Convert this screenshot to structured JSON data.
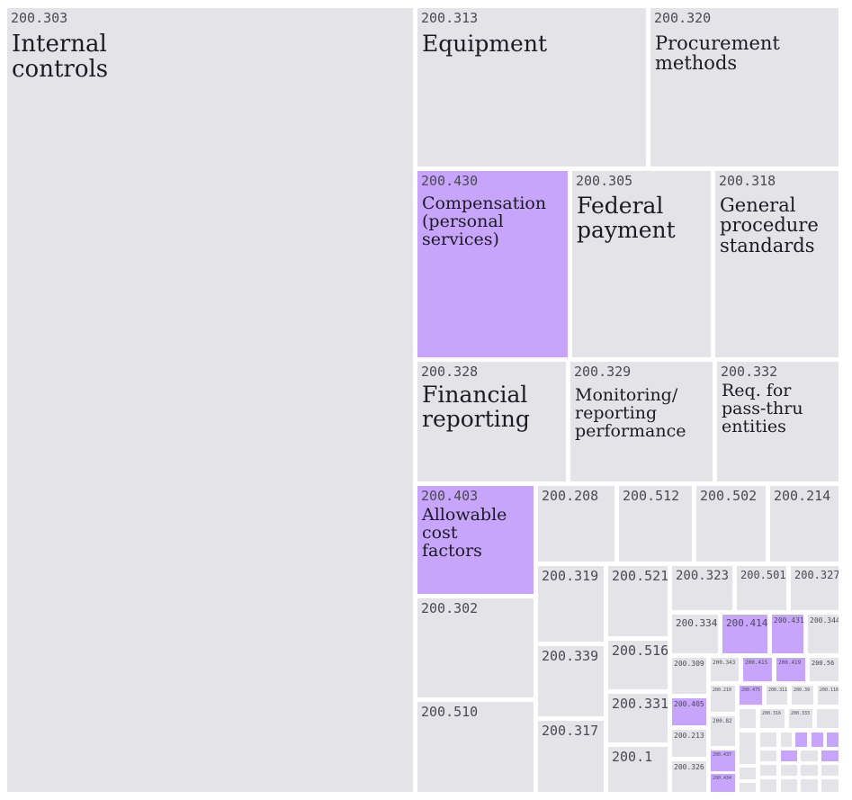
{
  "chart_data": {
    "type": "treemap",
    "colors": {
      "default": "#e4e4e8",
      "highlight": "#c7a5fb"
    },
    "cells": [
      {
        "code": "200.303",
        "name": "Internal\ncontrols",
        "highlight": false
      },
      {
        "code": "200.313",
        "name": "Equipment",
        "highlight": false
      },
      {
        "code": "200.320",
        "name": "Procurement\nmethods",
        "highlight": false
      },
      {
        "code": "200.430",
        "name": "Compensation\n(personal\nservices)",
        "highlight": true
      },
      {
        "code": "200.305",
        "name": "Federal\npayment",
        "highlight": false
      },
      {
        "code": "200.318",
        "name": "General\nprocedure\nstandards",
        "highlight": false
      },
      {
        "code": "200.328",
        "name": "Financial\nreporting",
        "highlight": false
      },
      {
        "code": "200.329",
        "name": "Monitoring/\nreporting\nperformance",
        "highlight": false
      },
      {
        "code": "200.332",
        "name": "Req. for\npass-thru\nentities",
        "highlight": false
      },
      {
        "code": "200.403",
        "name": "Allowable\ncost\nfactors",
        "highlight": true
      },
      {
        "code": "200.208",
        "name": "",
        "highlight": false
      },
      {
        "code": "200.512",
        "name": "",
        "highlight": false
      },
      {
        "code": "200.502",
        "name": "",
        "highlight": false
      },
      {
        "code": "200.214",
        "name": "",
        "highlight": false
      },
      {
        "code": "200.302",
        "name": "",
        "highlight": false
      },
      {
        "code": "200.510",
        "name": "",
        "highlight": false
      },
      {
        "code": "200.319",
        "name": "",
        "highlight": false
      },
      {
        "code": "200.339",
        "name": "",
        "highlight": false
      },
      {
        "code": "200.317",
        "name": "",
        "highlight": false
      },
      {
        "code": "200.521",
        "name": "",
        "highlight": false
      },
      {
        "code": "200.516",
        "name": "",
        "highlight": false
      },
      {
        "code": "200.331",
        "name": "",
        "highlight": false
      },
      {
        "code": "200.1",
        "name": "",
        "highlight": false
      },
      {
        "code": "200.323",
        "name": "",
        "highlight": false
      },
      {
        "code": "200.501",
        "name": "",
        "highlight": false
      },
      {
        "code": "200.327",
        "name": "",
        "highlight": false
      },
      {
        "code": "200.334",
        "name": "",
        "highlight": false
      },
      {
        "code": "200.414",
        "name": "",
        "highlight": true
      },
      {
        "code": "200.431",
        "name": "",
        "highlight": true
      },
      {
        "code": "200.344",
        "name": "",
        "highlight": false
      },
      {
        "code": "200.309",
        "name": "",
        "highlight": false
      },
      {
        "code": "200.343",
        "name": "",
        "highlight": false
      },
      {
        "code": "200.415",
        "name": "",
        "highlight": true
      },
      {
        "code": "200.419",
        "name": "",
        "highlight": true
      },
      {
        "code": "200.56",
        "name": "",
        "highlight": false
      },
      {
        "code": "200.405",
        "name": "",
        "highlight": true
      },
      {
        "code": "200.213",
        "name": "",
        "highlight": false
      },
      {
        "code": "200.326",
        "name": "",
        "highlight": false
      },
      {
        "code": "200.210",
        "name": "",
        "highlight": false
      },
      {
        "code": "200.82",
        "name": "",
        "highlight": false
      },
      {
        "code": "200.437",
        "name": "",
        "highlight": true
      },
      {
        "code": "200.434",
        "name": "",
        "highlight": true
      },
      {
        "code": "200.475",
        "name": "",
        "highlight": true
      },
      {
        "code": "200.311",
        "name": "",
        "highlight": false
      },
      {
        "code": "200.39",
        "name": "",
        "highlight": false
      },
      {
        "code": "200.116",
        "name": "",
        "highlight": false
      },
      {
        "code": "200.316",
        "name": "",
        "highlight": false
      },
      {
        "code": "200.333",
        "name": "",
        "highlight": false
      }
    ]
  }
}
